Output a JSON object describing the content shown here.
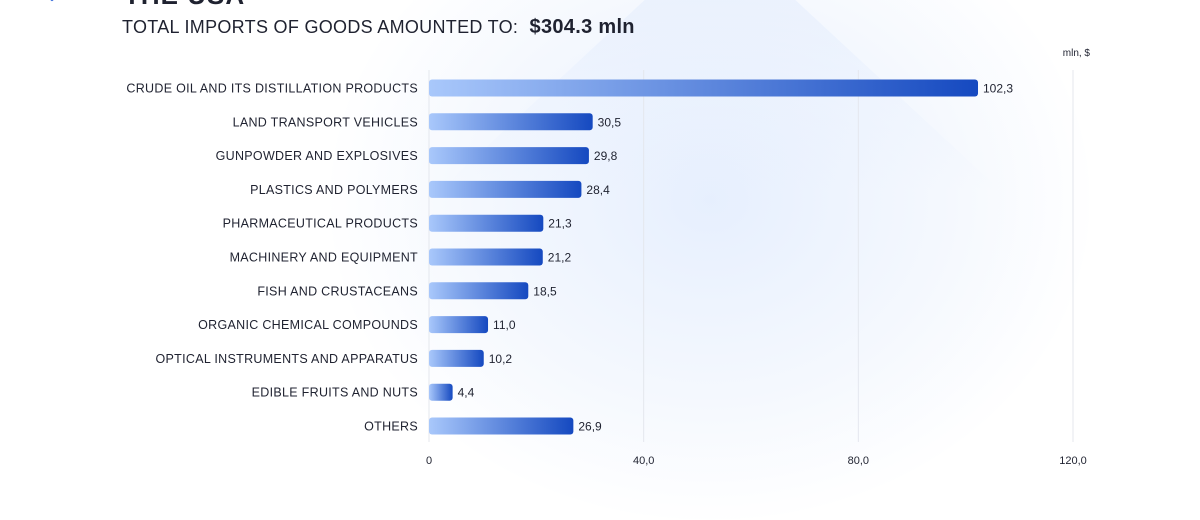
{
  "header": {
    "title_fragment": "THE USA",
    "subtitle_prefix": "TOTAL IMPORTS OF GOODS AMOUNTED TO:",
    "subtitle_amount": "$304.3 mln"
  },
  "chart_data": {
    "type": "bar",
    "orientation": "horizontal",
    "unit_label": "mln, $",
    "categories": [
      "CRUDE OIL AND ITS DISTILLATION PRODUCTS",
      "LAND TRANSPORT VEHICLES",
      "GUNPOWDER AND EXPLOSIVES",
      "PLASTICS AND POLYMERS",
      "PHARMACEUTICAL PRODUCTS",
      "MACHINERY AND EQUIPMENT",
      "FISH AND CRUSTACEANS",
      "ORGANIC CHEMICAL COMPOUNDS",
      "OPTICAL INSTRUMENTS AND APPARATUS",
      "EDIBLE FRUITS AND NUTS",
      "OTHERS"
    ],
    "values": [
      102.3,
      30.5,
      29.8,
      28.4,
      21.3,
      21.2,
      18.5,
      11.0,
      10.2,
      4.4,
      26.9
    ],
    "value_labels": [
      "102,3",
      "30,5",
      "29,8",
      "28,4",
      "21,3",
      "21,2",
      "18,5",
      "11,0",
      "10,2",
      "4,4",
      "26,9"
    ],
    "xlim": [
      0,
      120
    ],
    "xticks": [
      0,
      40,
      80,
      120
    ],
    "xtick_labels": [
      "0",
      "40,0",
      "80,0",
      "120,0"
    ],
    "grid": true,
    "colors": {
      "bar_start": "#a9c8fb",
      "bar_end": "#1549c0",
      "grid": "#e4e7ee"
    }
  }
}
